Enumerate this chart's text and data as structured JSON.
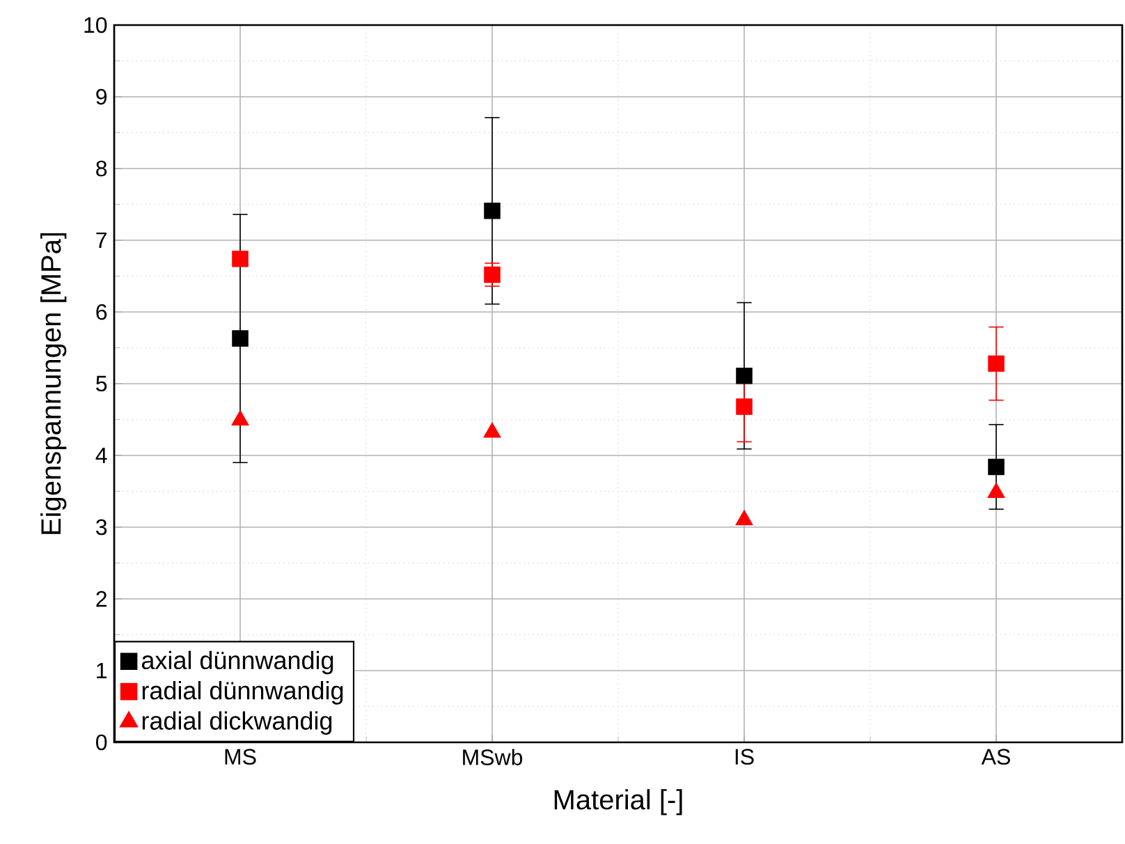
{
  "chart_data": {
    "type": "scatter",
    "xlabel": "Material [-]",
    "ylabel": "Eigenspannungen [MPa]",
    "categories": [
      "MS",
      "MSwb",
      "IS",
      "AS"
    ],
    "series": [
      {
        "name": "axial dünnwandig",
        "color": "#000000",
        "marker": "square",
        "values": [
          5.63,
          7.41,
          5.11,
          3.84
        ],
        "errors": [
          1.73,
          1.3,
          1.02,
          0.59
        ]
      },
      {
        "name": "radial dünnwandig",
        "color": "#ff0000",
        "marker": "square",
        "values": [
          6.74,
          6.52,
          4.68,
          5.28
        ],
        "errors": [
          null,
          0.16,
          0.49,
          0.51
        ]
      },
      {
        "name": "radial dickwandig",
        "color": "#ff0000",
        "marker": "triangle",
        "values": [
          4.49,
          4.32,
          3.1,
          3.48
        ]
      }
    ],
    "ylim": [
      0,
      10
    ],
    "yticks": [
      0,
      1,
      2,
      3,
      4,
      5,
      6,
      7,
      8,
      9,
      10
    ],
    "grid": true,
    "legend": "bottom left"
  }
}
